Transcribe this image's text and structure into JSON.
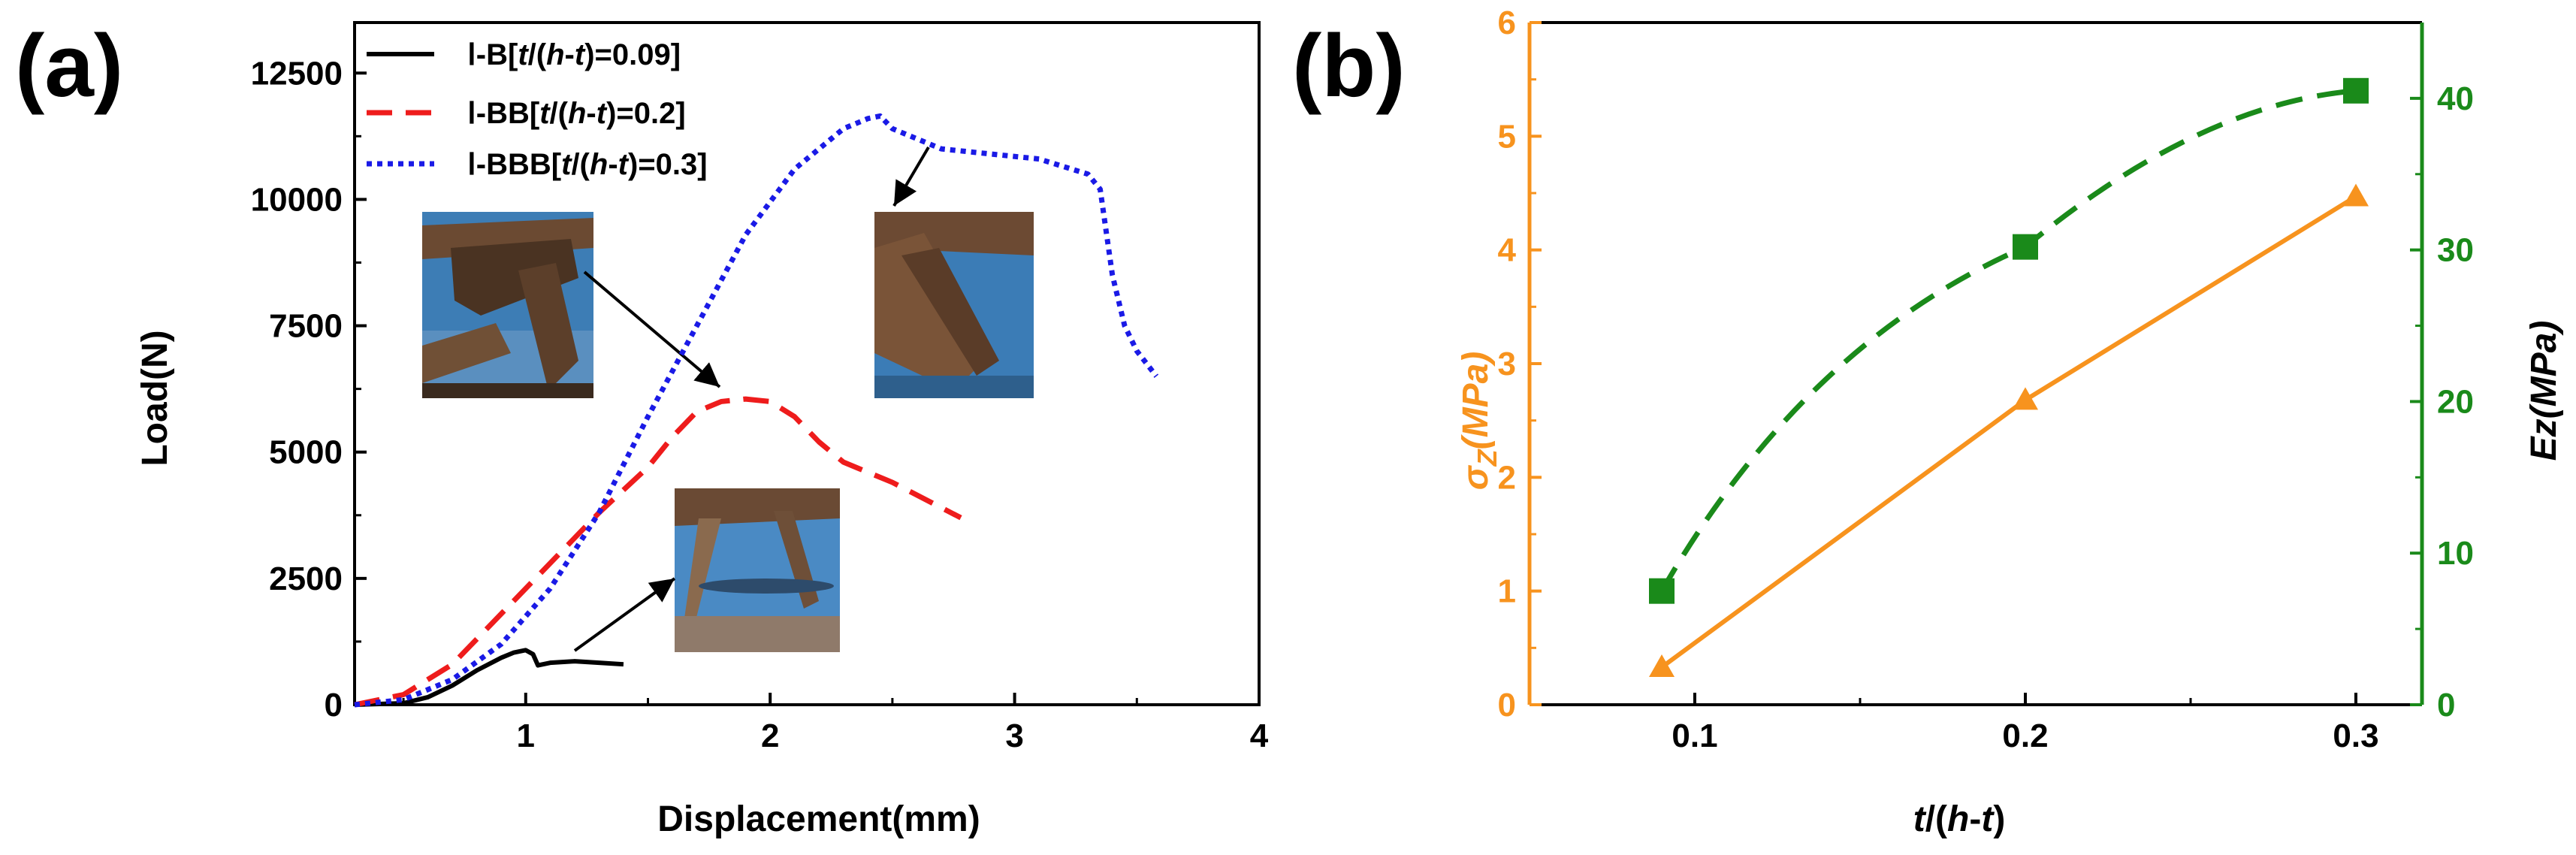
{
  "colors": {
    "series_solid": "#000000",
    "series_dash": "#ee1c1c",
    "series_dot": "#1a1ae6",
    "sigma": "#f7931e",
    "ez": "#1a8a1a",
    "photo_blue": "#3f7fb8",
    "photo_dark": "#4a3322"
  },
  "chart_data": [
    {
      "panel": "(a)",
      "type": "line",
      "title": "",
      "xlabel": "Displacement(mm)",
      "ylabel": "Load(N)",
      "xlim": [
        0.3,
        4.0
      ],
      "ylim": [
        0,
        13500
      ],
      "xticks": [
        "1",
        "2",
        "3",
        "4"
      ],
      "xtick_values": [
        1,
        2,
        3,
        4
      ],
      "yticks": [
        "0",
        "2500",
        "5000",
        "7500",
        "10000",
        "12500"
      ],
      "ytick_values": [
        0,
        2500,
        5000,
        7500,
        10000,
        12500
      ],
      "legend": [
        {
          "prefix": "Ⅰ",
          "label": "-B[",
          "t": "t",
          "mid": "/(",
          "h": "h",
          "dash": "-",
          "t2": "t",
          "tail": ")=0.09]"
        },
        {
          "prefix": "Ⅰ",
          "label": "-BB[",
          "t": "t",
          "mid": "/(",
          "h": "h",
          "dash": "-",
          "t2": "t",
          "tail": ")=0.2]"
        },
        {
          "prefix": "Ⅰ",
          "label": "-BBB[",
          "t": "t",
          "mid": "/(",
          "h": "h",
          "dash": "-",
          "t2": "t",
          "tail": ")=0.3]"
        }
      ],
      "series": [
        {
          "name": "Ⅰ-B[t/(h-t)=0.09]",
          "style": "solid",
          "x": [
            0.3,
            0.5,
            0.6,
            0.7,
            0.8,
            0.9,
            0.95,
            1.0,
            1.03,
            1.05,
            1.1,
            1.2,
            1.3,
            1.4
          ],
          "y": [
            0,
            30,
            150,
            380,
            680,
            930,
            1030,
            1080,
            1000,
            780,
            830,
            860,
            830,
            800
          ]
        },
        {
          "name": "Ⅰ-BB[t/(h-t)=0.2]",
          "style": "dash",
          "x": [
            0.3,
            0.5,
            0.7,
            0.9,
            1.1,
            1.3,
            1.5,
            1.6,
            1.7,
            1.8,
            1.9,
            2.0,
            2.1,
            2.2,
            2.3,
            2.5,
            2.7,
            2.78
          ],
          "y": [
            0,
            200,
            800,
            1800,
            2800,
            3800,
            4700,
            5300,
            5800,
            6000,
            6050,
            6000,
            5700,
            5200,
            4800,
            4400,
            3900,
            3700
          ]
        },
        {
          "name": "Ⅰ-BBB[t/(h-t)=0.3]",
          "style": "dot",
          "x": [
            0.3,
            0.5,
            0.7,
            0.9,
            1.1,
            1.3,
            1.5,
            1.7,
            1.9,
            2.1,
            2.3,
            2.4,
            2.45,
            2.5,
            2.7,
            2.9,
            3.1,
            3.3,
            3.35,
            3.4,
            3.45,
            3.5,
            3.58
          ],
          "y": [
            0,
            100,
            500,
            1200,
            2300,
            3800,
            5700,
            7500,
            9300,
            10600,
            11400,
            11600,
            11650,
            11400,
            11000,
            10900,
            10800,
            10500,
            10200,
            8500,
            7500,
            7000,
            6500
          ]
        }
      ]
    },
    {
      "panel": "(b)",
      "type": "line",
      "xlabel": "t/(h-t)",
      "xlabel_parts": {
        "a": "t",
        "b": "/(",
        "c": "h",
        "d": "-",
        "e": "t",
        "f": ")"
      },
      "xlim": [
        0.05,
        0.32
      ],
      "xticks": [
        "0.1",
        "0.2",
        "0.3"
      ],
      "xtick_values": [
        0.1,
        0.2,
        0.3
      ],
      "y_left": {
        "label": "σZ(MPa)",
        "label_parts": {
          "sigma": "σ",
          "sub": "Z",
          "unit": "(MPa)"
        },
        "lim": [
          0,
          6
        ],
        "ticks": [
          "0",
          "1",
          "2",
          "3",
          "4",
          "5",
          "6"
        ],
        "tick_values": [
          0,
          1,
          2,
          3,
          4,
          5,
          6
        ]
      },
      "y_right": {
        "label": "Ez(MPa)",
        "lim": [
          0,
          45
        ],
        "ticks": [
          "0",
          "10",
          "20",
          "30",
          "40"
        ],
        "tick_values": [
          0,
          10,
          20,
          30,
          40
        ]
      },
      "series": [
        {
          "name": "σZ",
          "axis": "left",
          "style": "solid",
          "marker": "triangle",
          "x": [
            0.09,
            0.2,
            0.3
          ],
          "y": [
            0.33,
            2.68,
            4.47
          ]
        },
        {
          "name": "Ez",
          "axis": "right",
          "style": "dash",
          "marker": "square",
          "x": [
            0.09,
            0.2,
            0.3
          ],
          "y": [
            7.5,
            30.2,
            40.5
          ]
        }
      ]
    }
  ]
}
